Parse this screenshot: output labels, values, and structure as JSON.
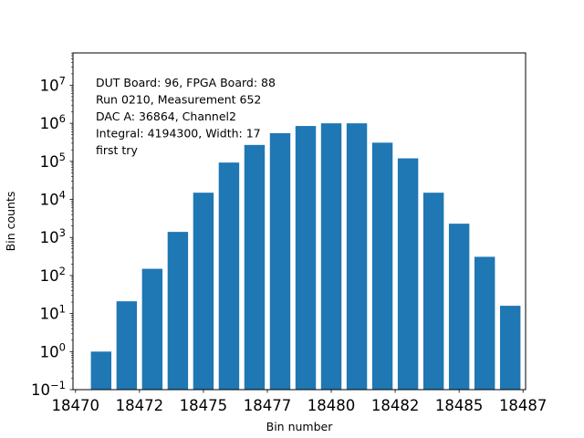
{
  "chart_data": {
    "type": "bar",
    "title": "",
    "xlabel": "Bin number",
    "ylabel": "Bin counts",
    "yscale": "log",
    "ylim_exp": [
      -1,
      7.85
    ],
    "xlim": [
      18469.9,
      18487.6
    ],
    "bar_color": "#1f77b4",
    "x": [
      18471,
      18472,
      18473,
      18474,
      18475,
      18476,
      18477,
      18478,
      18479,
      18480,
      18481,
      18482,
      18483,
      18484,
      18485,
      18486,
      18487
    ],
    "values": [
      1,
      21,
      150,
      1400,
      15000,
      93000,
      270000,
      550000,
      850000,
      1000000,
      1000000,
      310000,
      120000,
      15000,
      2300,
      310,
      16
    ],
    "x_ticks": [
      {
        "value": 18470,
        "label": "18470"
      },
      {
        "value": 18472.5,
        "label": "18472"
      },
      {
        "value": 18475,
        "label": "18475"
      },
      {
        "value": 18477.5,
        "label": "18477"
      },
      {
        "value": 18480,
        "label": "18480"
      },
      {
        "value": 18482.5,
        "label": "18482"
      },
      {
        "value": 18485,
        "label": "18485"
      },
      {
        "value": 18487.5,
        "label": "18487"
      }
    ],
    "y_ticks": [
      {
        "exp": -1,
        "base": "10",
        "sup": "−1"
      },
      {
        "exp": 0,
        "base": "10",
        "sup": "0"
      },
      {
        "exp": 1,
        "base": "10",
        "sup": "1"
      },
      {
        "exp": 2,
        "base": "10",
        "sup": "2"
      },
      {
        "exp": 3,
        "base": "10",
        "sup": "3"
      },
      {
        "exp": 4,
        "base": "10",
        "sup": "4"
      },
      {
        "exp": 5,
        "base": "10",
        "sup": "5"
      },
      {
        "exp": 6,
        "base": "10",
        "sup": "6"
      },
      {
        "exp": 7,
        "base": "10",
        "sup": "7"
      }
    ],
    "annotations": [
      "DUT Board: 96, FPGA Board: 88",
      "Run 0210, Measurement 652",
      "DAC A: 36864, Channel2",
      "Integral: 4194300, Width: 17",
      "first try"
    ]
  }
}
